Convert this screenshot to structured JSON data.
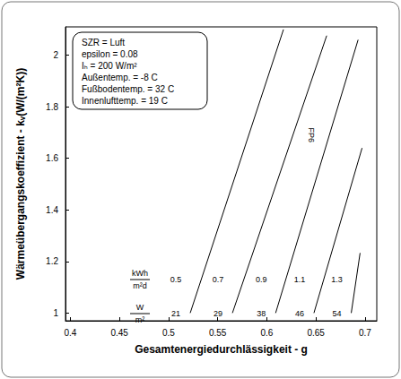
{
  "chart_data": {
    "type": "line",
    "xlabel": "Gesamtenergiedurchlässigkeit - g",
    "ylabel": "Wärmeübergangskoeffizient - kᵥ(W/(m²K))",
    "xlim": [
      0.395,
      0.712
    ],
    "ylim": [
      0.97,
      2.11
    ],
    "xticks": [
      0.4,
      0.45,
      0.5,
      0.55,
      0.6,
      0.65,
      0.7
    ],
    "yticks": [
      1,
      1.2,
      1.4,
      1.6,
      1.8,
      2
    ],
    "grid": false,
    "info_box": [
      "SZR = Luft",
      "epsilon = 0.08",
      "Iₕ = 200 W/m²",
      "Außentemp. = -8 C",
      "Fußbodentemp. = 32 C",
      "Innenlufttemp. = 19 C"
    ],
    "annotations": [
      {
        "text": "FP6",
        "x": 0.645,
        "y": 1.69
      }
    ],
    "row_units": [
      {
        "numerator": "kWh",
        "denominator": "m²d"
      },
      {
        "numerator": "W",
        "denominator": "m²"
      }
    ],
    "series": [
      {
        "color": "#000000",
        "x": [
          0.522,
          0.617
        ],
        "values": [
          1.0,
          2.1
        ],
        "kwh_per_m2d": 0.5,
        "w_per_m2": 21
      },
      {
        "color": "#000000",
        "x": [
          0.565,
          0.661
        ],
        "values": [
          1.0,
          2.076
        ],
        "kwh_per_m2d": 0.7,
        "w_per_m2": 29
      },
      {
        "color": "#000000",
        "x": [
          0.609,
          0.693
        ],
        "values": [
          1.0,
          2.06
        ],
        "kwh_per_m2d": 0.9,
        "w_per_m2": 38
      },
      {
        "color": "#000000",
        "x": [
          0.648,
          0.697
        ],
        "values": [
          1.0,
          1.64
        ],
        "kwh_per_m2d": 1.1,
        "w_per_m2": 46
      },
      {
        "color": "#000000",
        "x": [
          0.686,
          0.695
        ],
        "values": [
          1.0,
          1.233
        ],
        "kwh_per_m2d": 1.3,
        "w_per_m2": 54
      }
    ]
  }
}
